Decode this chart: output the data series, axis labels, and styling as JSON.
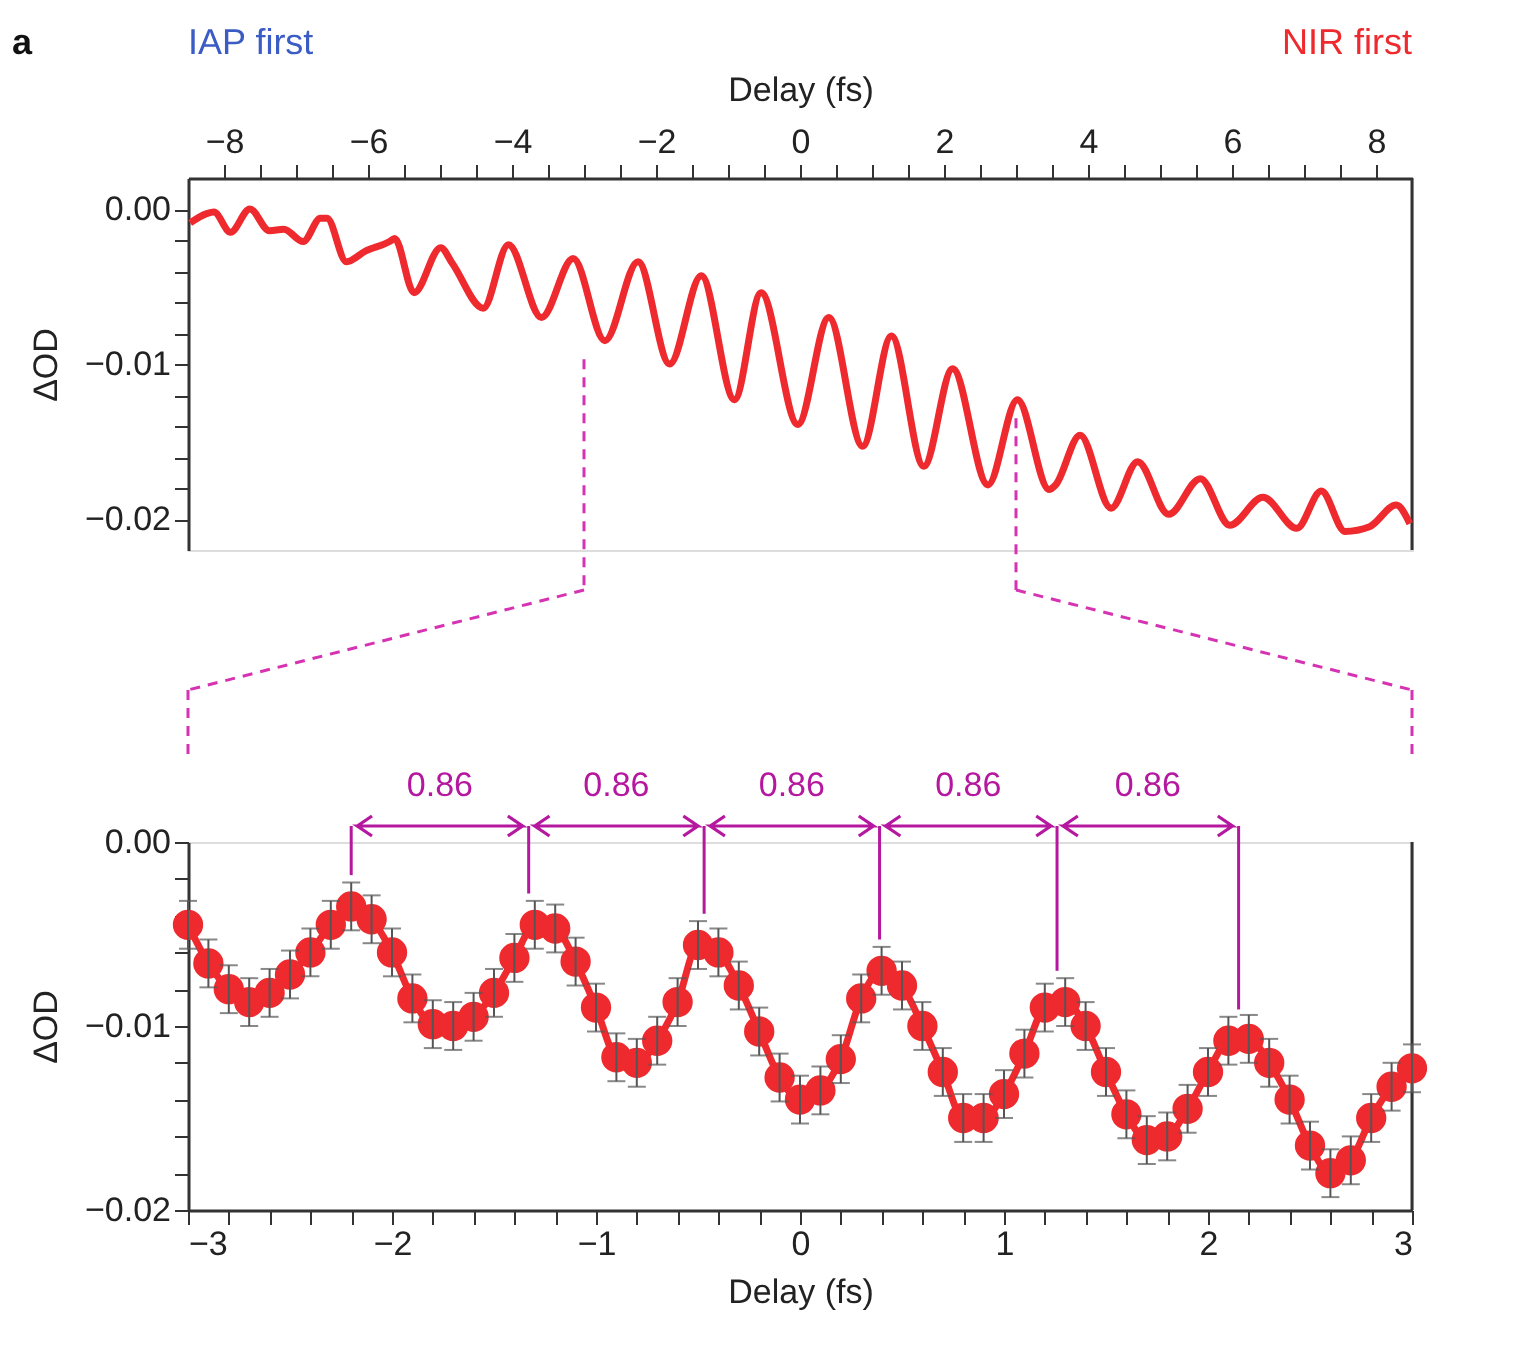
{
  "chart_data": [
    {
      "type": "line",
      "xlabel": "Delay (fs)",
      "ylabel": "ΔOD",
      "annotations": [
        "a",
        "IAP first",
        "NIR first"
      ],
      "x": [
        -8.47,
        -8.24,
        -8.14,
        -7.91,
        -7.64,
        -7.37,
        -7.17,
        -6.9,
        -6.66,
        -6.57,
        -6.3,
        -6.03,
        -5.7,
        -5.63,
        -5.36,
        -4.99,
        -4.83,
        -4.4,
        -4.05,
        -3.59,
        -3.15,
        -2.71,
        -2.25,
        -1.81,
        -1.37,
        -0.91,
        -0.54,
        -0.03,
        0.4,
        0.87,
        1.27,
        1.72,
        2.12,
        2.61,
        3.02,
        3.46,
        3.55,
        3.89,
        4.32,
        4.69,
        5.12,
        5.56,
        5.97,
        6.43,
        6.9,
        7.24,
        7.57,
        7.91,
        8.28,
        8.47
      ],
      "series": [
        {
          "color": "#ee2a2e",
          "values": [
            -0.0009,
            -0.0003,
            -0.0002,
            -0.0015,
            0.0,
            -0.0014,
            -0.0013,
            -0.0021,
            -0.0006,
            -0.0006,
            -0.0034,
            -0.0027,
            -0.0021,
            -0.0019,
            -0.0054,
            -0.0025,
            -0.0035,
            -0.0064,
            -0.0023,
            -0.007,
            -0.0032,
            -0.0085,
            -0.0034,
            -0.01,
            -0.0043,
            -0.0123,
            -0.0054,
            -0.0139,
            -0.007,
            -0.0153,
            -0.0082,
            -0.0166,
            -0.0103,
            -0.0178,
            -0.0123,
            -0.0181,
            -0.0178,
            -0.0146,
            -0.0193,
            -0.0163,
            -0.0197,
            -0.0174,
            -0.0204,
            -0.0186,
            -0.0206,
            -0.0182,
            -0.0208,
            -0.0205,
            -0.0191,
            -0.0203
          ]
        }
      ],
      "marker": "none",
      "xlim": [
        -8.5,
        8.5
      ],
      "xticks": [
        {
          "value": -8,
          "label": "−8"
        },
        {
          "value": -7.5,
          "label": null
        },
        {
          "value": -7,
          "label": null
        },
        {
          "value": -6.5,
          "label": null
        },
        {
          "value": -6,
          "label": "−6"
        },
        {
          "value": -5.5,
          "label": null
        },
        {
          "value": -5,
          "label": null
        },
        {
          "value": -4.5,
          "label": null
        },
        {
          "value": -4,
          "label": "−4"
        },
        {
          "value": -3.5,
          "label": null
        },
        {
          "value": -3,
          "label": null
        },
        {
          "value": -2.5,
          "label": null
        },
        {
          "value": -2,
          "label": "−2"
        },
        {
          "value": -1.5,
          "label": null
        },
        {
          "value": -1,
          "label": null
        },
        {
          "value": -0.5,
          "label": null
        },
        0,
        {
          "value": 0.5,
          "label": null
        },
        {
          "value": 1,
          "label": null
        },
        {
          "value": 1.5,
          "label": null
        },
        2,
        {
          "value": 2.5,
          "label": null
        },
        {
          "value": 3,
          "label": null
        },
        {
          "value": 3.5,
          "label": null
        },
        4,
        {
          "value": 4.5,
          "label": null
        },
        {
          "value": 5,
          "label": null
        },
        {
          "value": 5.5,
          "label": null
        },
        6,
        {
          "value": 6.5,
          "label": null
        },
        {
          "value": 7,
          "label": null
        },
        {
          "value": 7.5,
          "label": null
        },
        8
      ],
      "ylim": [
        -0.022,
        0.002
      ],
      "yticks": [
        {
          "value": 0,
          "label": "0.00"
        },
        {
          "value": -0.002,
          "label": null
        },
        {
          "value": -0.004,
          "label": null
        },
        {
          "value": -0.006,
          "label": null
        },
        {
          "value": -0.008,
          "label": null
        },
        {
          "value": -0.01,
          "label": "−0.01"
        },
        {
          "value": -0.012,
          "label": null
        },
        {
          "value": -0.014,
          "label": null
        },
        {
          "value": -0.016,
          "label": null
        },
        {
          "value": -0.018,
          "label": null
        },
        {
          "value": -0.02,
          "label": "−0.02"
        }
      ],
      "ref_lines": [
        {
          "axis": "x",
          "value": -3,
          "color": "#d633b3",
          "line_style": "dashed"
        },
        {
          "axis": "x",
          "value": 3,
          "color": "#d633b3",
          "line_style": "dashed"
        }
      ]
    },
    {
      "type": "line",
      "xlabel": "Delay (fs)",
      "ylabel": "ΔOD",
      "marker": "circle",
      "annotations": [
        "0.86",
        "0.86",
        "0.86",
        "0.86",
        "0.86"
      ],
      "ref_lines": [
        {
          "axis": "x",
          "value": -2.2,
          "color": "#b5179e",
          "line_style": "solid"
        },
        {
          "axis": "x",
          "value": -1.33,
          "color": "#b5179e",
          "line_style": "solid"
        },
        {
          "axis": "x",
          "value": -0.47,
          "color": "#b5179e",
          "line_style": "solid"
        },
        {
          "axis": "x",
          "value": 0.39,
          "color": "#b5179e",
          "line_style": "solid"
        },
        {
          "axis": "x",
          "value": 1.26,
          "color": "#b5179e",
          "line_style": "solid"
        },
        {
          "axis": "x",
          "value": 2.15,
          "color": "#b5179e",
          "line_style": "solid"
        }
      ],
      "x": [
        -3.0,
        -2.9,
        -2.8,
        -2.7,
        -2.6,
        -2.5,
        -2.4,
        -2.3,
        -2.2,
        -2.1,
        -2.0,
        -1.9,
        -1.8,
        -1.7,
        -1.6,
        -1.5,
        -1.4,
        -1.3,
        -1.2,
        -1.1,
        -1.0,
        -0.9,
        -0.8,
        -0.7,
        -0.6,
        -0.5,
        -0.4,
        -0.3,
        -0.2,
        -0.1,
        0.0,
        0.1,
        0.2,
        0.3,
        0.4,
        0.5,
        0.6,
        0.7,
        0.8,
        0.9,
        1.0,
        1.1,
        1.2,
        1.3,
        1.4,
        1.5,
        1.6,
        1.7,
        1.8,
        1.9,
        2.0,
        2.1,
        2.2,
        2.3,
        2.4,
        2.5,
        2.6,
        2.7,
        2.8,
        2.9,
        3.0
      ],
      "series": [
        {
          "color": "#ee2a2e",
          "values": [
            -0.0045,
            -0.0066,
            -0.008,
            -0.0087,
            -0.0082,
            -0.0072,
            -0.006,
            -0.0045,
            -0.0035,
            -0.0042,
            -0.006,
            -0.0085,
            -0.0099,
            -0.01,
            -0.0095,
            -0.0082,
            -0.0063,
            -0.0045,
            -0.0047,
            -0.0065,
            -0.009,
            -0.0117,
            -0.012,
            -0.0108,
            -0.0087,
            -0.0056,
            -0.006,
            -0.0078,
            -0.0103,
            -0.0128,
            -0.014,
            -0.0135,
            -0.0118,
            -0.0085,
            -0.007,
            -0.0078,
            -0.01,
            -0.0125,
            -0.015,
            -0.015,
            -0.0137,
            -0.0115,
            -0.009,
            -0.0087,
            -0.01,
            -0.0125,
            -0.0148,
            -0.0162,
            -0.016,
            -0.0145,
            -0.0125,
            -0.0108,
            -0.0107,
            -0.012,
            -0.014,
            -0.0165,
            -0.018,
            -0.0173,
            -0.015,
            -0.0133,
            -0.0123
          ],
          "errors": [
            0.0013,
            0.0013,
            0.0013,
            0.0013,
            0.0013,
            0.0013,
            0.0013,
            0.0013,
            0.0013,
            0.0013,
            0.0013,
            0.0013,
            0.0013,
            0.0013,
            0.0013,
            0.0013,
            0.0013,
            0.0013,
            0.0013,
            0.0013,
            0.0013,
            0.0013,
            0.0013,
            0.0013,
            0.0013,
            0.0013,
            0.0013,
            0.0013,
            0.0013,
            0.0013,
            0.0013,
            0.0013,
            0.0013,
            0.0013,
            0.0013,
            0.0013,
            0.0013,
            0.0013,
            0.0013,
            0.0013,
            0.0013,
            0.0013,
            0.0013,
            0.0013,
            0.0013,
            0.0013,
            0.0013,
            0.0013,
            0.0013,
            0.0013,
            0.0013,
            0.0013,
            0.0013,
            0.0013,
            0.0013,
            0.0013,
            0.0013,
            0.0013,
            0.0013,
            0.0013,
            0.0013
          ]
        }
      ],
      "xlim": [
        -3,
        3
      ],
      "xticks": [
        {
          "value": -3,
          "label": "−3"
        },
        {
          "value": -2.8,
          "label": null
        },
        {
          "value": -2.6,
          "label": null
        },
        {
          "value": -2.4,
          "label": null
        },
        {
          "value": -2.2,
          "label": null
        },
        {
          "value": -2,
          "label": "−2"
        },
        {
          "value": -1.8,
          "label": null
        },
        {
          "value": -1.6,
          "label": null
        },
        {
          "value": -1.4,
          "label": null
        },
        {
          "value": -1.2,
          "label": null
        },
        {
          "value": -1,
          "label": "−1"
        },
        {
          "value": -0.8,
          "label": null
        },
        {
          "value": -0.6,
          "label": null
        },
        {
          "value": -0.4,
          "label": null
        },
        {
          "value": -0.2,
          "label": null
        },
        0,
        {
          "value": 0.2,
          "label": null
        },
        {
          "value": 0.4,
          "label": null
        },
        {
          "value": 0.6,
          "label": null
        },
        {
          "value": 0.8,
          "label": null
        },
        1,
        {
          "value": 1.2,
          "label": null
        },
        {
          "value": 1.4,
          "label": null
        },
        {
          "value": 1.6,
          "label": null
        },
        {
          "value": 1.8,
          "label": null
        },
        2,
        {
          "value": 2.2,
          "label": null
        },
        {
          "value": 2.4,
          "label": null
        },
        {
          "value": 2.6,
          "label": null
        },
        {
          "value": 2.8,
          "label": null
        },
        3
      ],
      "ylim": [
        -0.02,
        0
      ],
      "yticks": [
        {
          "value": 0,
          "label": "0.00"
        },
        {
          "value": -0.002,
          "label": null
        },
        {
          "value": -0.004,
          "label": null
        },
        {
          "value": -0.006,
          "label": null
        },
        {
          "value": -0.008,
          "label": null
        },
        {
          "value": -0.01,
          "label": "−0.01"
        },
        {
          "value": -0.012,
          "label": null
        },
        {
          "value": -0.014,
          "label": null
        },
        {
          "value": -0.016,
          "label": null
        },
        {
          "value": -0.018,
          "label": null
        },
        {
          "value": -0.02,
          "label": "−0.02"
        }
      ]
    }
  ]
}
